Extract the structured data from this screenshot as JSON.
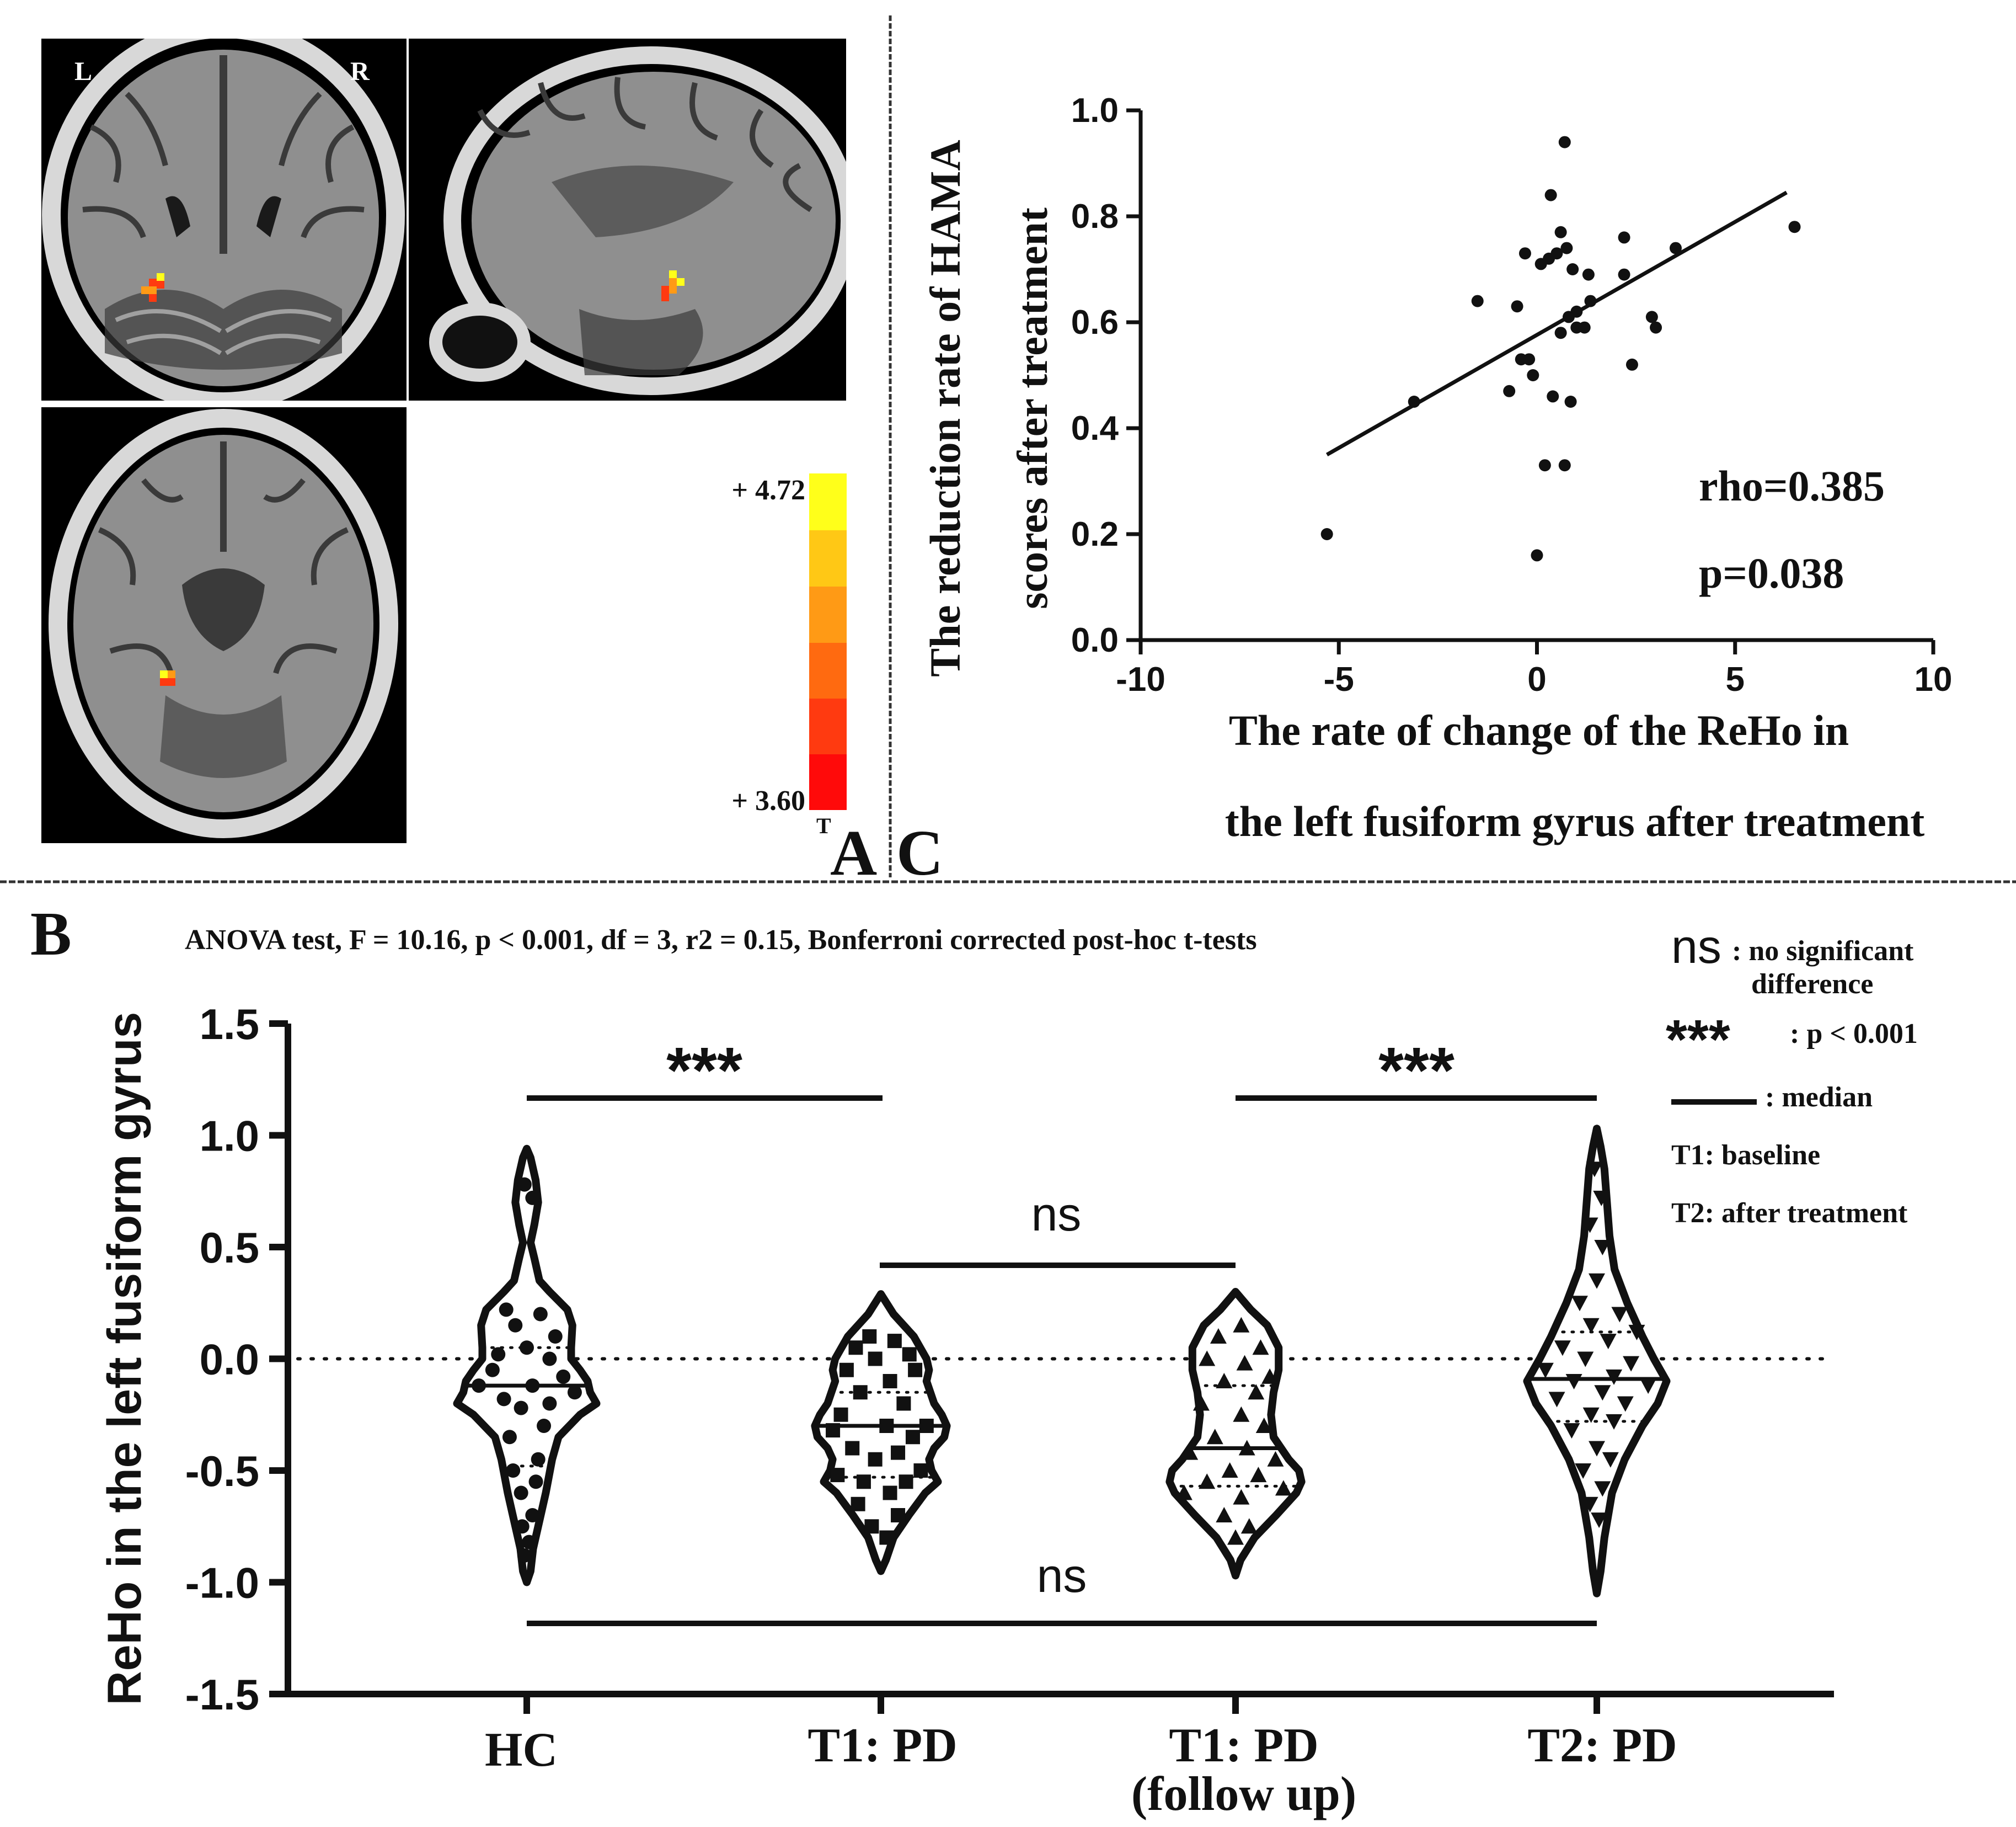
{
  "panelA": {
    "label": "A",
    "orient_left": "L",
    "orient_right": "R",
    "colorbar_max": "+ 4.72",
    "colorbar_min": "+ 3.60",
    "colorbar_unit": "T",
    "colorbar_colors": [
      "#ff0a0a",
      "#ff3a10",
      "#ff6a10",
      "#ff9a15",
      "#ffc815",
      "#ffff1a"
    ],
    "brain_colors": {
      "background": "#000000",
      "skull": "#d8d8d8",
      "tissue": "#8f8f8f",
      "sulcus": "#3a3a3a",
      "ventricle": "#1a1a1a"
    },
    "cluster_colors": [
      "#ffff1a",
      "#ff9a15",
      "#ff3a10"
    ]
  },
  "panelC": {
    "label": "C",
    "rho_text": "rho=0.385",
    "p_text": "p=0.038"
  },
  "panelB": {
    "label": "B",
    "anova_text": "ANOVA test, F = 10.16, p < 0.001, df = 3, r2 = 0.15, Bonferroni corrected post-hoc t-tests",
    "sig_top_left": "***",
    "sig_top_right": "***",
    "sig_middle": "ns",
    "sig_bottom": "ns",
    "group_label_HC": "HC",
    "group_label_T1": "T1: PD",
    "group_label_T1f_1": "T1: PD",
    "group_label_T1f_2": "(follow up)",
    "group_label_T2": "T2: PD",
    "legend": {
      "ns_symbol": "ns",
      "ns_text_1": ": no significant",
      "ns_text_2": "difference",
      "stars_symbol": "***",
      "stars_text": ": p < 0.001",
      "median_text": ": median",
      "t1_text": "T1: baseline",
      "t2_text": "T2: after treatment"
    }
  },
  "chart_data": [
    {
      "type": "scatter",
      "panel": "C",
      "title": "",
      "xlabel_line1": "The rate of change of the ReHo in",
      "xlabel_line2": "the left fusiform gyrus after treatment",
      "ylabel_line1": "The reduction rate of HAMA",
      "ylabel_line2": "scores after treatment",
      "xlim": [
        -10,
        10
      ],
      "ylim": [
        0.0,
        1.0
      ],
      "xticks": [
        -10,
        -5,
        0,
        5,
        10
      ],
      "xtick_labels": [
        "-10",
        "-5",
        "0",
        "5",
        "10"
      ],
      "yticks": [
        0.0,
        0.2,
        0.4,
        0.6,
        0.8,
        1.0
      ],
      "ytick_labels": [
        "0.0",
        "0.2",
        "0.4",
        "0.6",
        "0.8",
        "1.0"
      ],
      "points": [
        [
          -5.3,
          0.2
        ],
        [
          -3.1,
          0.45
        ],
        [
          -1.5,
          0.64
        ],
        [
          -0.7,
          0.47
        ],
        [
          -0.5,
          0.63
        ],
        [
          -0.4,
          0.53
        ],
        [
          -0.3,
          0.73
        ],
        [
          -0.2,
          0.53
        ],
        [
          -0.1,
          0.5
        ],
        [
          0.0,
          0.16
        ],
        [
          0.1,
          0.71
        ],
        [
          0.2,
          0.33
        ],
        [
          0.3,
          0.72
        ],
        [
          0.35,
          0.84
        ],
        [
          0.4,
          0.46
        ],
        [
          0.5,
          0.73
        ],
        [
          0.6,
          0.77
        ],
        [
          0.6,
          0.58
        ],
        [
          0.7,
          0.33
        ],
        [
          0.7,
          0.94
        ],
        [
          0.75,
          0.74
        ],
        [
          0.8,
          0.61
        ],
        [
          0.85,
          0.45
        ],
        [
          0.9,
          0.7
        ],
        [
          1.0,
          0.62
        ],
        [
          1.0,
          0.59
        ],
        [
          1.2,
          0.59
        ],
        [
          1.3,
          0.69
        ],
        [
          1.35,
          0.64
        ],
        [
          2.2,
          0.76
        ],
        [
          2.2,
          0.69
        ],
        [
          2.4,
          0.52
        ],
        [
          2.9,
          0.61
        ],
        [
          3.0,
          0.59
        ],
        [
          3.5,
          0.74
        ],
        [
          6.5,
          0.78
        ]
      ],
      "fit_line": {
        "x": [
          -5.3,
          6.3
        ],
        "y": [
          0.35,
          0.845
        ]
      },
      "rho": 0.385,
      "p": 0.038
    },
    {
      "type": "violin",
      "panel": "B",
      "title": "ANOVA test, F = 10.16, p < 0.001, df = 3, r2 = 0.15, Bonferroni corrected post-hoc t-tests",
      "ylabel": "ReHo in the left fusiform gyrus",
      "ylim": [
        -1.5,
        1.5
      ],
      "yticks": [
        -1.5,
        -1.0,
        -0.5,
        0.0,
        0.5,
        1.0,
        1.5
      ],
      "ytick_labels": [
        "-1.5",
        "-1.0",
        "-0.5",
        "0.0",
        "0.5",
        "1.0",
        "1.5"
      ],
      "reference_line": 0.0,
      "groups": [
        {
          "name": "HC",
          "marker": "circle",
          "median": -0.12,
          "q1": -0.48,
          "q3": 0.05,
          "min": -1.0,
          "max": 0.94,
          "profile": [
            [
              -1.0,
              0.0
            ],
            [
              -0.95,
              0.03
            ],
            [
              -0.85,
              0.05
            ],
            [
              -0.75,
              0.09
            ],
            [
              -0.6,
              0.15
            ],
            [
              -0.45,
              0.2
            ],
            [
              -0.35,
              0.25
            ],
            [
              -0.25,
              0.42
            ],
            [
              -0.2,
              0.55
            ],
            [
              -0.15,
              0.5
            ],
            [
              -0.1,
              0.48
            ],
            [
              -0.05,
              0.42
            ],
            [
              0.0,
              0.35
            ],
            [
              0.05,
              0.35
            ],
            [
              0.15,
              0.36
            ],
            [
              0.22,
              0.32
            ],
            [
              0.3,
              0.18
            ],
            [
              0.35,
              0.1
            ],
            [
              0.45,
              0.06
            ],
            [
              0.52,
              0.03
            ],
            [
              0.6,
              0.06
            ],
            [
              0.7,
              0.09
            ],
            [
              0.8,
              0.07
            ],
            [
              0.9,
              0.03
            ],
            [
              0.94,
              0.0
            ]
          ],
          "points": [
            [
              0.78,
              -0.02
            ],
            [
              0.72,
              0.05
            ],
            [
              0.22,
              -0.18
            ],
            [
              0.2,
              0.12
            ],
            [
              0.15,
              -0.1
            ],
            [
              0.1,
              0.25
            ],
            [
              0.05,
              0.0
            ],
            [
              0.02,
              -0.25
            ],
            [
              0.0,
              0.2
            ],
            [
              -0.05,
              -0.3
            ],
            [
              -0.08,
              0.32
            ],
            [
              -0.12,
              -0.42
            ],
            [
              -0.12,
              0.05
            ],
            [
              -0.15,
              0.42
            ],
            [
              -0.18,
              -0.2
            ],
            [
              -0.2,
              0.2
            ],
            [
              -0.22,
              -0.05
            ],
            [
              -0.3,
              0.15
            ],
            [
              -0.35,
              -0.15
            ],
            [
              -0.45,
              0.1
            ],
            [
              -0.5,
              -0.12
            ],
            [
              -0.55,
              0.08
            ],
            [
              -0.6,
              -0.05
            ],
            [
              -0.7,
              0.05
            ],
            [
              -0.75,
              -0.04
            ],
            [
              -0.82,
              0.02
            ],
            [
              -0.88,
              -0.02
            ]
          ]
        },
        {
          "name": "T1: PD",
          "marker": "square",
          "median": -0.3,
          "q1": -0.53,
          "q3": -0.15,
          "min": -0.95,
          "max": 0.29,
          "profile": [
            [
              -0.95,
              0.0
            ],
            [
              -0.9,
              0.04
            ],
            [
              -0.8,
              0.1
            ],
            [
              -0.7,
              0.22
            ],
            [
              -0.6,
              0.35
            ],
            [
              -0.55,
              0.45
            ],
            [
              -0.5,
              0.4
            ],
            [
              -0.45,
              0.38
            ],
            [
              -0.4,
              0.42
            ],
            [
              -0.35,
              0.5
            ],
            [
              -0.3,
              0.52
            ],
            [
              -0.25,
              0.48
            ],
            [
              -0.2,
              0.42
            ],
            [
              -0.1,
              0.36
            ],
            [
              -0.05,
              0.38
            ],
            [
              0.0,
              0.36
            ],
            [
              0.1,
              0.26
            ],
            [
              0.2,
              0.1
            ],
            [
              0.29,
              0.0
            ]
          ],
          "points": [
            [
              0.1,
              -0.1
            ],
            [
              0.08,
              0.12
            ],
            [
              0.05,
              -0.22
            ],
            [
              0.02,
              0.25
            ],
            [
              0.0,
              -0.05
            ],
            [
              -0.05,
              0.3
            ],
            [
              -0.05,
              -0.3
            ],
            [
              -0.1,
              0.08
            ],
            [
              -0.15,
              -0.18
            ],
            [
              -0.2,
              0.2
            ],
            [
              -0.25,
              -0.35
            ],
            [
              -0.3,
              0.05
            ],
            [
              -0.3,
              0.4
            ],
            [
              -0.32,
              -0.42
            ],
            [
              -0.35,
              0.28
            ],
            [
              -0.4,
              -0.25
            ],
            [
              -0.42,
              0.15
            ],
            [
              -0.45,
              -0.05
            ],
            [
              -0.5,
              0.35
            ],
            [
              -0.52,
              -0.38
            ],
            [
              -0.55,
              0.22
            ],
            [
              -0.55,
              -0.15
            ],
            [
              -0.6,
              0.08
            ],
            [
              -0.65,
              -0.2
            ],
            [
              -0.7,
              0.15
            ],
            [
              -0.75,
              -0.08
            ],
            [
              -0.8,
              0.05
            ]
          ]
        },
        {
          "name": "T1: PD (follow up)",
          "marker": "triangle-up",
          "median": -0.4,
          "q1": -0.57,
          "q3": -0.12,
          "min": -0.97,
          "max": 0.3,
          "profile": [
            [
              -0.97,
              0.0
            ],
            [
              -0.9,
              0.04
            ],
            [
              -0.8,
              0.15
            ],
            [
              -0.7,
              0.32
            ],
            [
              -0.6,
              0.48
            ],
            [
              -0.55,
              0.52
            ],
            [
              -0.5,
              0.5
            ],
            [
              -0.45,
              0.42
            ],
            [
              -0.35,
              0.3
            ],
            [
              -0.25,
              0.28
            ],
            [
              -0.15,
              0.3
            ],
            [
              -0.05,
              0.34
            ],
            [
              0.05,
              0.34
            ],
            [
              0.15,
              0.25
            ],
            [
              0.22,
              0.12
            ],
            [
              0.3,
              0.0
            ]
          ],
          "points": [
            [
              0.15,
              0.05
            ],
            [
              0.1,
              -0.15
            ],
            [
              0.05,
              0.22
            ],
            [
              0.0,
              -0.25
            ],
            [
              -0.02,
              0.08
            ],
            [
              -0.08,
              0.3
            ],
            [
              -0.1,
              -0.1
            ],
            [
              -0.15,
              0.18
            ],
            [
              -0.2,
              -0.3
            ],
            [
              -0.25,
              0.05
            ],
            [
              -0.3,
              0.25
            ],
            [
              -0.35,
              -0.18
            ],
            [
              -0.4,
              0.1
            ],
            [
              -0.42,
              -0.4
            ],
            [
              -0.45,
              0.35
            ],
            [
              -0.5,
              -0.05
            ],
            [
              -0.52,
              0.2
            ],
            [
              -0.55,
              -0.25
            ],
            [
              -0.58,
              0.42
            ],
            [
              -0.6,
              -0.45
            ],
            [
              -0.62,
              0.05
            ],
            [
              -0.7,
              -0.1
            ],
            [
              -0.75,
              0.12
            ],
            [
              -0.8,
              0.0
            ]
          ]
        },
        {
          "name": "T2: PD",
          "marker": "triangle-down",
          "median": -0.09,
          "q1": -0.28,
          "q3": 0.12,
          "min": -1.05,
          "max": 1.03,
          "profile": [
            [
              -1.05,
              0.0
            ],
            [
              -0.95,
              0.03
            ],
            [
              -0.8,
              0.06
            ],
            [
              -0.6,
              0.12
            ],
            [
              -0.45,
              0.22
            ],
            [
              -0.3,
              0.36
            ],
            [
              -0.2,
              0.48
            ],
            [
              -0.1,
              0.55
            ],
            [
              0.0,
              0.45
            ],
            [
              0.1,
              0.36
            ],
            [
              0.25,
              0.24
            ],
            [
              0.4,
              0.14
            ],
            [
              0.55,
              0.1
            ],
            [
              0.7,
              0.08
            ],
            [
              0.85,
              0.06
            ],
            [
              0.95,
              0.03
            ],
            [
              1.03,
              0.0
            ]
          ],
          "points": [
            [
              0.85,
              -0.02
            ],
            [
              0.72,
              0.04
            ],
            [
              0.6,
              -0.06
            ],
            [
              0.5,
              0.05
            ],
            [
              0.35,
              0.0
            ],
            [
              0.25,
              -0.15
            ],
            [
              0.2,
              0.2
            ],
            [
              0.15,
              -0.05
            ],
            [
              0.12,
              0.35
            ],
            [
              0.08,
              0.1
            ],
            [
              0.05,
              -0.3
            ],
            [
              0.0,
              -0.1
            ],
            [
              -0.02,
              0.3
            ],
            [
              -0.05,
              -0.45
            ],
            [
              -0.08,
              0.15
            ],
            [
              -0.1,
              -0.2
            ],
            [
              -0.12,
              0.45
            ],
            [
              -0.15,
              0.05
            ],
            [
              -0.18,
              -0.35
            ],
            [
              -0.2,
              0.25
            ],
            [
              -0.25,
              -0.05
            ],
            [
              -0.28,
              0.15
            ],
            [
              -0.32,
              -0.22
            ],
            [
              -0.4,
              0.0
            ],
            [
              -0.45,
              0.12
            ],
            [
              -0.5,
              -0.12
            ],
            [
              -0.58,
              0.05
            ],
            [
              -0.65,
              -0.06
            ],
            [
              -0.72,
              0.02
            ]
          ]
        }
      ],
      "significance": [
        {
          "from": "HC",
          "to": "T1: PD",
          "label": "***"
        },
        {
          "from": "T1: PD (follow up)",
          "to": "T2: PD",
          "label": "***"
        },
        {
          "from": "T1: PD",
          "to": "T1: PD (follow up)",
          "label": "ns"
        },
        {
          "from": "HC",
          "to": "T2: PD",
          "label": "ns"
        }
      ]
    }
  ]
}
